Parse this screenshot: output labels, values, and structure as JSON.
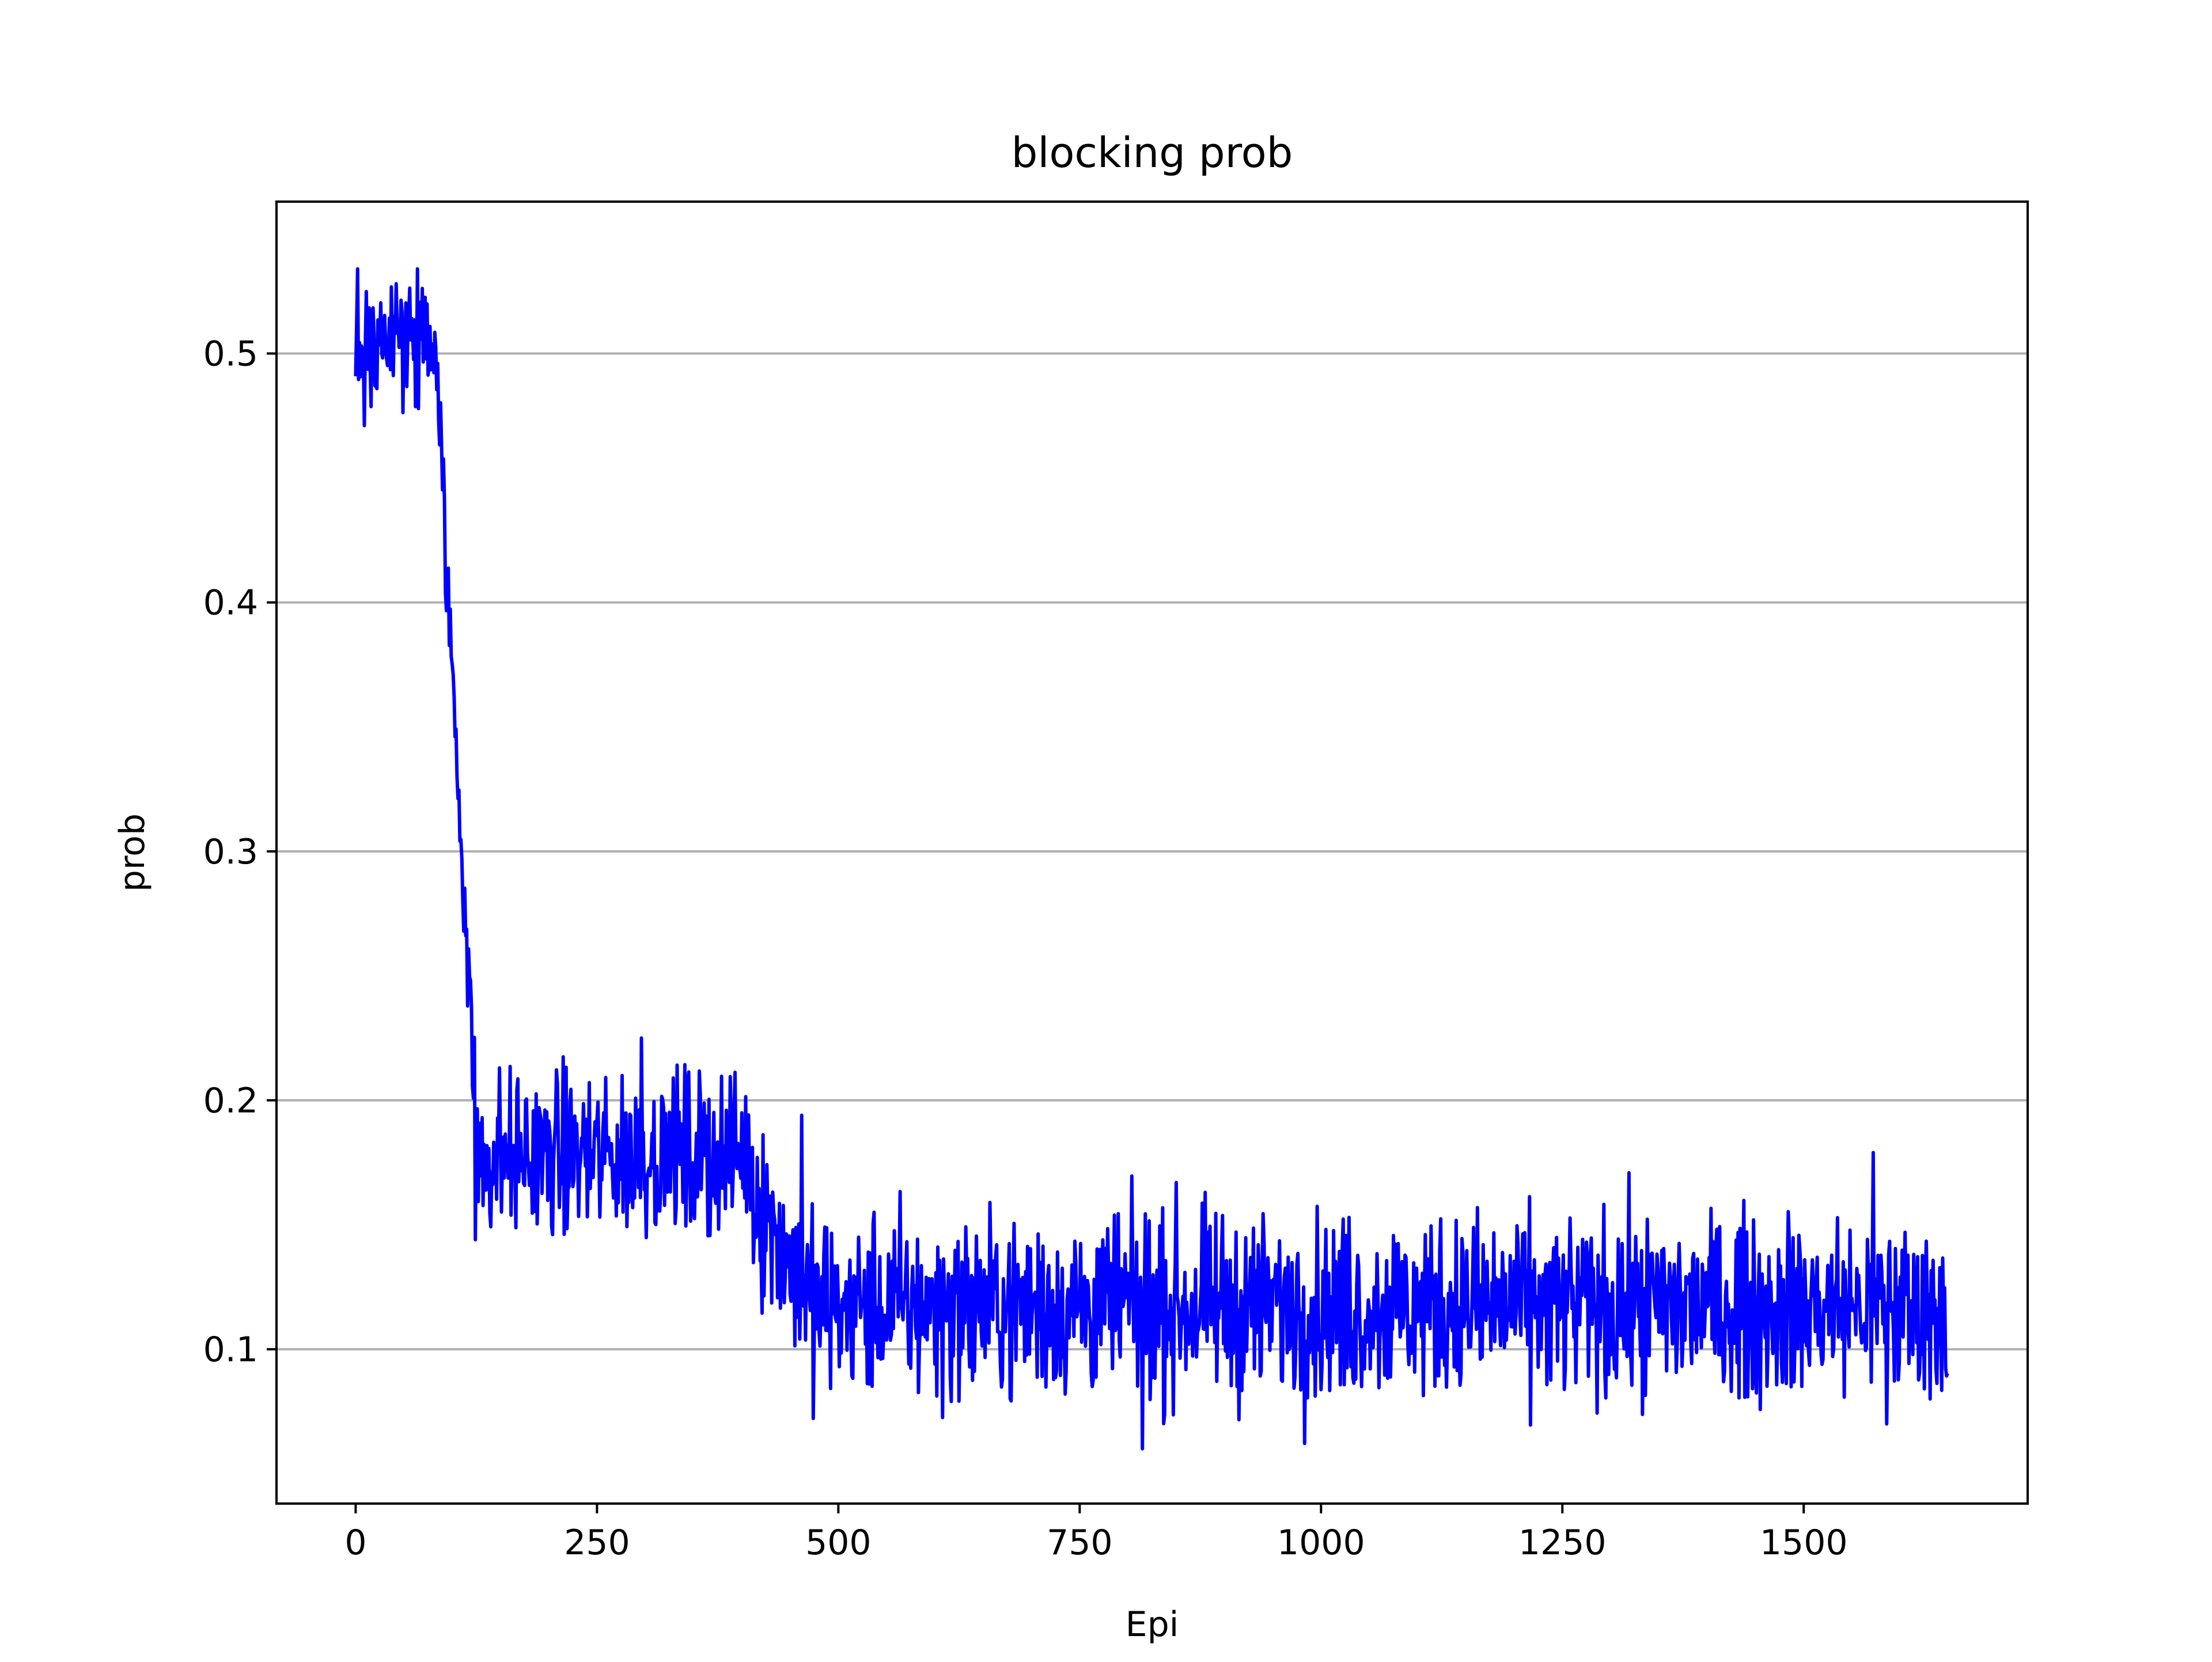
{
  "chart_data": {
    "type": "line",
    "title": "blocking prob",
    "xlabel": "Epi",
    "ylabel": "prob",
    "xlim": [
      -82,
      1732
    ],
    "ylim": [
      0.038,
      0.561
    ],
    "xticks": [
      0,
      250,
      500,
      750,
      1000,
      1250,
      1500
    ],
    "xtick_labels": [
      "0",
      "250",
      "500",
      "750",
      "1000",
      "1250",
      "1500"
    ],
    "yticks": [
      0.1,
      0.2,
      0.3,
      0.4,
      0.5
    ],
    "ytick_labels": [
      "0.1",
      "0.2",
      "0.3",
      "0.4",
      "0.5"
    ],
    "grid": "horizontal",
    "n_points": 1650,
    "series": [
      {
        "color": "#0000ff",
        "x_start": 0,
        "x_step": 1,
        "segments": [
          {
            "x_range": [
              0,
              85
            ],
            "level": 0.505,
            "noise": 0.014,
            "min": 0.471,
            "max": 0.534
          },
          {
            "x_range": [
              85,
              125
            ],
            "level_start": 0.48,
            "level_end": 0.195,
            "noise": 0.012
          },
          {
            "x_range": [
              125,
              410
            ],
            "level": 0.178,
            "noise": 0.016,
            "min": 0.144,
            "max": 0.225
          },
          {
            "x_range": [
              410,
              470
            ],
            "level_start": 0.165,
            "level_end": 0.12,
            "noise": 0.018
          },
          {
            "x_range": [
              470,
              1650
            ],
            "level": 0.117,
            "noise": 0.018,
            "min": 0.06,
            "max": 0.179
          }
        ],
        "extremes": [
          {
            "x": 2,
            "y": 0.534
          },
          {
            "x": 9,
            "y": 0.471
          },
          {
            "x": 124,
            "y": 0.144
          },
          {
            "x": 296,
            "y": 0.225
          },
          {
            "x": 462,
            "y": 0.194
          },
          {
            "x": 815,
            "y": 0.06
          },
          {
            "x": 1572,
            "y": 0.179
          },
          {
            "x": 1586,
            "y": 0.07
          },
          {
            "x": 1650,
            "y": 0.092
          }
        ]
      }
    ]
  }
}
